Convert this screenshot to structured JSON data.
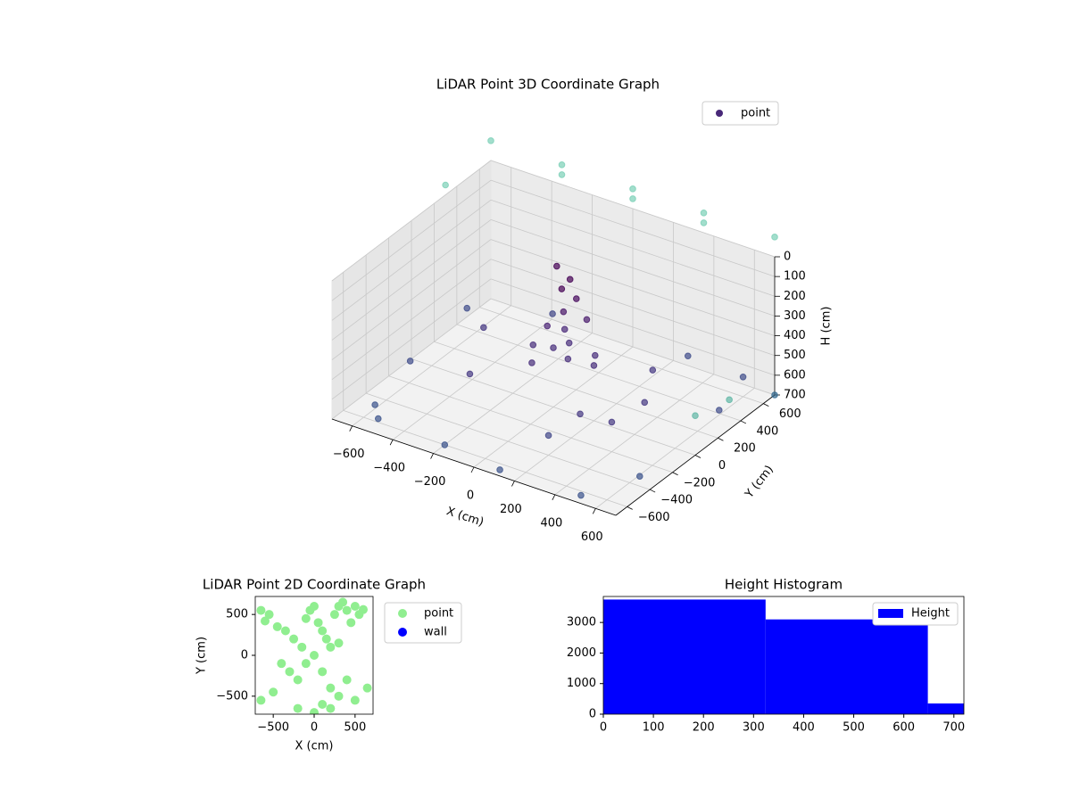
{
  "chart_data": [
    {
      "type": "scatter3d",
      "title": "LiDAR Point 3D Coordinate Graph",
      "xlabel": "X (cm)",
      "ylabel": "Y (cm)",
      "zlabel": "H (cm)",
      "xlim": [
        -700,
        700
      ],
      "ylim": [
        -700,
        700
      ],
      "zlim": [
        700,
        0
      ],
      "xticks": [
        {
          "value": -600,
          "label": "−600"
        },
        {
          "value": -400,
          "label": "−400"
        },
        {
          "value": -200,
          "label": "−200"
        },
        0,
        200,
        400,
        600
      ],
      "yticks": [
        {
          "value": -600,
          "label": "−600"
        },
        {
          "value": -400,
          "label": "−400"
        },
        {
          "value": -200,
          "label": "−200"
        },
        0,
        200,
        400,
        600
      ],
      "zticks": [
        0,
        100,
        200,
        300,
        400,
        500,
        600,
        700
      ],
      "grid": true,
      "legend": "upper right",
      "series": [
        {
          "name": "point",
          "color": "#482878",
          "x": [
            0,
            50,
            -100,
            100,
            150,
            -50,
            200,
            0,
            50,
            30,
            60,
            0,
            80,
            -30,
            120,
            300,
            400,
            450,
            350,
            -300,
            -400,
            200,
            -200,
            -600,
            -500,
            -200,
            100,
            500,
            650,
            650,
            600,
            -650,
            -650,
            700,
            300,
            -700,
            -350,
            0,
            350,
            700,
            -350,
            0,
            350,
            -700,
            700,
            700
          ],
          "y": [
            0,
            50,
            0,
            -50,
            100,
            -100,
            0,
            100,
            0,
            20,
            40,
            30,
            60,
            0,
            80,
            -300,
            -200,
            0,
            250,
            -200,
            100,
            -400,
            350,
            -500,
            -650,
            -600,
            -650,
            -650,
            -400,
            300,
            600,
            400,
            -100,
            700,
            650,
            700,
            700,
            700,
            700,
            700,
            700,
            700,
            700,
            300,
            0,
            300
          ],
          "z": [
            400,
            380,
            420,
            400,
            430,
            450,
            420,
            350,
            200,
            100,
            50,
            0,
            150,
            300,
            250,
            500,
            550,
            520,
            500,
            550,
            480,
            600,
            450,
            680,
            650,
            700,
            700,
            690,
            650,
            620,
            600,
            600,
            650,
            700,
            620,
            -100,
            -100,
            -100,
            -100,
            -100,
            -50,
            -50,
            -50,
            -50,
            500,
            550
          ],
          "colors": [
            "#472d7b",
            "#472d7b",
            "#472d7b",
            "#472d7b",
            "#472d7b",
            "#472d7b",
            "#472d7b",
            "#482878",
            "#481668",
            "#440154",
            "#440154",
            "#440154",
            "#46085c",
            "#482173",
            "#481a6c",
            "#453781",
            "#453781",
            "#453781",
            "#453781",
            "#453781",
            "#453781",
            "#404688",
            "#404688",
            "#3b528b",
            "#3b528b",
            "#3b528b",
            "#3b528b",
            "#3b528b",
            "#3b528b",
            "#3e4c8a",
            "#3e4c8a",
            "#3e4c8a",
            "#3e4c8a",
            "#31688e",
            "#3e4c8a",
            "#7ad0b6",
            "#7ad0b6",
            "#7ad0b6",
            "#7ad0b6",
            "#7ad0b6",
            "#7ad0b6",
            "#7ad0b6",
            "#7ad0b6",
            "#7ad0b6",
            "#5fb7a5",
            "#5fb7a5"
          ]
        }
      ]
    },
    {
      "type": "scatter",
      "title": "LiDAR Point 2D Coordinate Graph",
      "xlabel": "X (cm)",
      "ylabel": "Y (cm)",
      "xlim": [
        -720,
        720
      ],
      "ylim": [
        -720,
        720
      ],
      "xticks": [
        {
          "value": -500,
          "label": "−500"
        },
        0,
        500
      ],
      "yticks": [
        {
          "value": -500,
          "label": "−500"
        },
        0,
        500
      ],
      "legend": "outside right",
      "series": [
        {
          "name": "point",
          "color": "#90ee90",
          "x": [
            -650,
            -550,
            -600,
            -450,
            -350,
            -250,
            -150,
            -100,
            -50,
            0,
            50,
            100,
            150,
            200,
            250,
            300,
            350,
            400,
            450,
            500,
            550,
            600,
            -300,
            -200,
            -100,
            0,
            100,
            200,
            300,
            400,
            -500,
            -200,
            200,
            500,
            650,
            -650,
            0,
            300,
            -400,
            100
          ],
          "y": [
            550,
            500,
            420,
            350,
            300,
            200,
            100,
            450,
            550,
            600,
            400,
            300,
            200,
            100,
            500,
            600,
            650,
            550,
            400,
            600,
            500,
            560,
            -200,
            -300,
            -100,
            0,
            -200,
            -400,
            -500,
            -300,
            -450,
            -650,
            -650,
            -550,
            -400,
            -550,
            -700,
            150,
            -100,
            -600
          ]
        },
        {
          "name": "wall",
          "color": "#0000ff",
          "x": [],
          "y": []
        }
      ]
    },
    {
      "type": "histogram",
      "title": "Height Histogram",
      "name": "Height",
      "color": "#0000ff",
      "bins": [
        0,
        324,
        648,
        720
      ],
      "values": [
        3750,
        3100,
        350
      ],
      "xlim": [
        0,
        720
      ],
      "ylim": [
        0,
        3850
      ],
      "xticks": [
        0,
        100,
        200,
        300,
        400,
        500,
        600,
        700
      ],
      "yticks": [
        0,
        1000,
        2000,
        3000
      ],
      "legend": "upper right"
    }
  ]
}
